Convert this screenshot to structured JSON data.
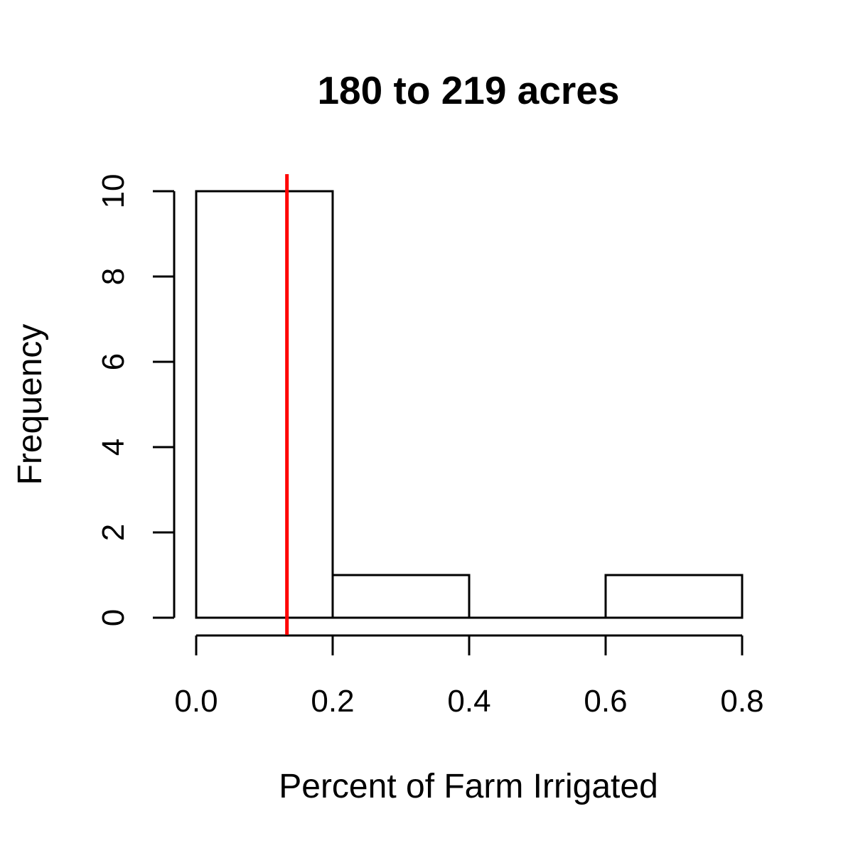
{
  "chart_data": {
    "type": "bar",
    "title": "180 to 219 acres",
    "xlabel": "Percent of Farm Irrigated",
    "ylabel": "Frequency",
    "bins": [
      {
        "from": 0.0,
        "to": 0.2,
        "count": 10
      },
      {
        "from": 0.2,
        "to": 0.4,
        "count": 1
      },
      {
        "from": 0.4,
        "to": 0.6,
        "count": 0
      },
      {
        "from": 0.6,
        "to": 0.8,
        "count": 1
      }
    ],
    "x_ticks": [
      "0.0",
      "0.2",
      "0.4",
      "0.6",
      "0.8"
    ],
    "y_ticks": [
      "0",
      "2",
      "4",
      "6",
      "8",
      "10"
    ],
    "xlim": [
      0.0,
      0.8
    ],
    "ylim": [
      0,
      10
    ],
    "reference_line": {
      "x": 0.133,
      "color": "#ff0000"
    },
    "bar_fill": "#ffffff",
    "bar_stroke": "#000000",
    "grid": false,
    "legend": "none"
  }
}
